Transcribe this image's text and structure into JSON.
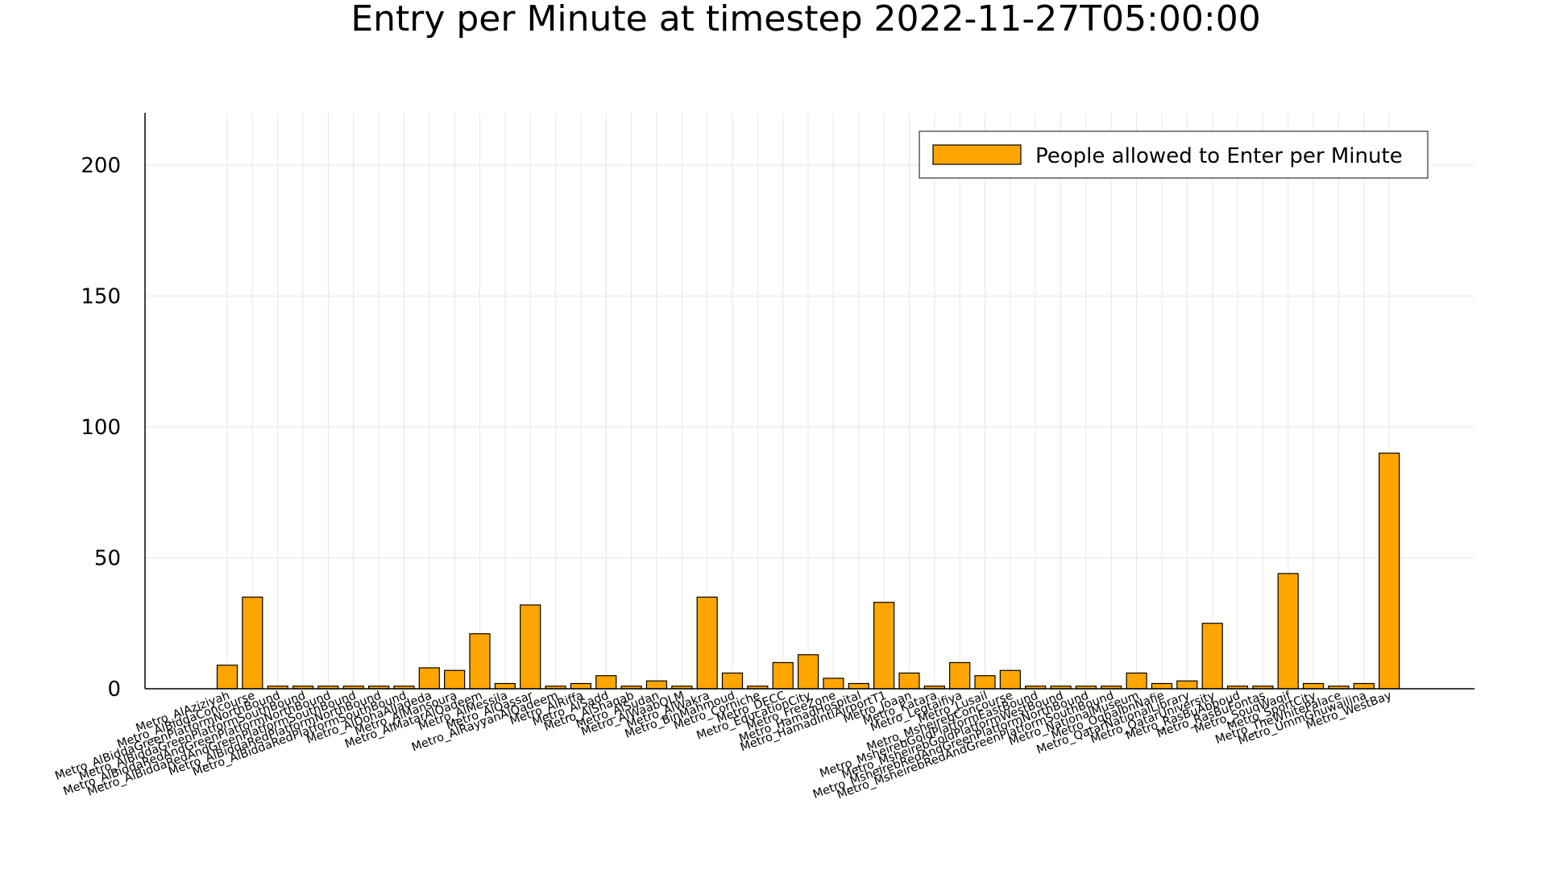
{
  "chart_data": {
    "type": "bar",
    "title": "Entry per Minute at timestep 2022-11-27T05:00:00",
    "xlabel": "",
    "ylabel": "",
    "ylim": [
      0,
      220
    ],
    "yticks": [
      0,
      50,
      100,
      150,
      200
    ],
    "grid": true,
    "legend_position": "top-right",
    "bar_color": "#FFA500",
    "categories": [
      "Metro_AlAziziyah",
      "Metro_AlBiddaConcourse",
      "Metro_AlBiddaGreenPlatformNorthBound",
      "Metro_AlBiddaGreenPlatformSouthBound",
      "Metro_AlBiddaRedAndGreenPlatformNorthBound",
      "Metro_AlBiddaRedAndGreenPlatformSouthBound",
      "Metro_AlBiddaRedPlatformNorthBound",
      "Metro_AlBiddaRedPlatformSouthBound",
      "Metro_AlDohaAlJadeda",
      "Metro_AlMansoura",
      "Metro_AlMatarAlQadeem",
      "Metro_AlMessila",
      "Metro_AlQassar",
      "Metro_AlRayyanAlQadeem",
      "Metro_AlRiffa",
      "Metro_AlSadd",
      "Metro_AlShaqab",
      "Metro_AlSudan",
      "Metro_AlWaabQLM",
      "Metro_AlWakra",
      "Metro_BinMahmoud",
      "Metro_Corniche",
      "Metro_DECC",
      "Metro_EducationCity",
      "Metro_FreeZone",
      "Metro_HamadHospital",
      "Metro_HamadIntlAirportT1",
      "Metro_Joaan",
      "Metro_Katara",
      "Metro_Legtaifiya",
      "Metro_Lusail",
      "Metro_MsheirebConcourse",
      "Metro_MsheirebGoldPlatformEastBound",
      "Metro_MsheirebGoldPlatformWestBound",
      "Metro_MsheirebRedAndGreenPlatformNorthBound",
      "Metro_MsheirebRedAndGreenPlatformSouthBound",
      "Metro_NationalMuseum",
      "Metro_OqbaIbnNafie",
      "Metro_QatarNationalLibrary",
      "Metro_QatarUniversity",
      "Metro_RasBuAbboud",
      "Metro_RasBuFontas",
      "Metro_SouqWaqif",
      "Metro_SportCity",
      "Metro_TheWhitePalace",
      "Metro_UmmGhuwailina",
      "Metro_WestBay"
    ],
    "series": [
      {
        "name": "People allowed to Enter per Minute",
        "values": [
          9,
          35,
          1,
          1,
          1,
          1,
          1,
          1,
          8,
          7,
          21,
          2,
          32,
          1,
          2,
          5,
          1,
          3,
          1,
          35,
          6,
          1,
          10,
          13,
          4,
          2,
          33,
          6,
          1,
          10,
          5,
          7,
          1,
          1,
          1,
          1,
          6,
          2,
          3,
          25,
          1,
          1,
          44,
          2,
          1,
          2,
          90
        ]
      }
    ]
  }
}
